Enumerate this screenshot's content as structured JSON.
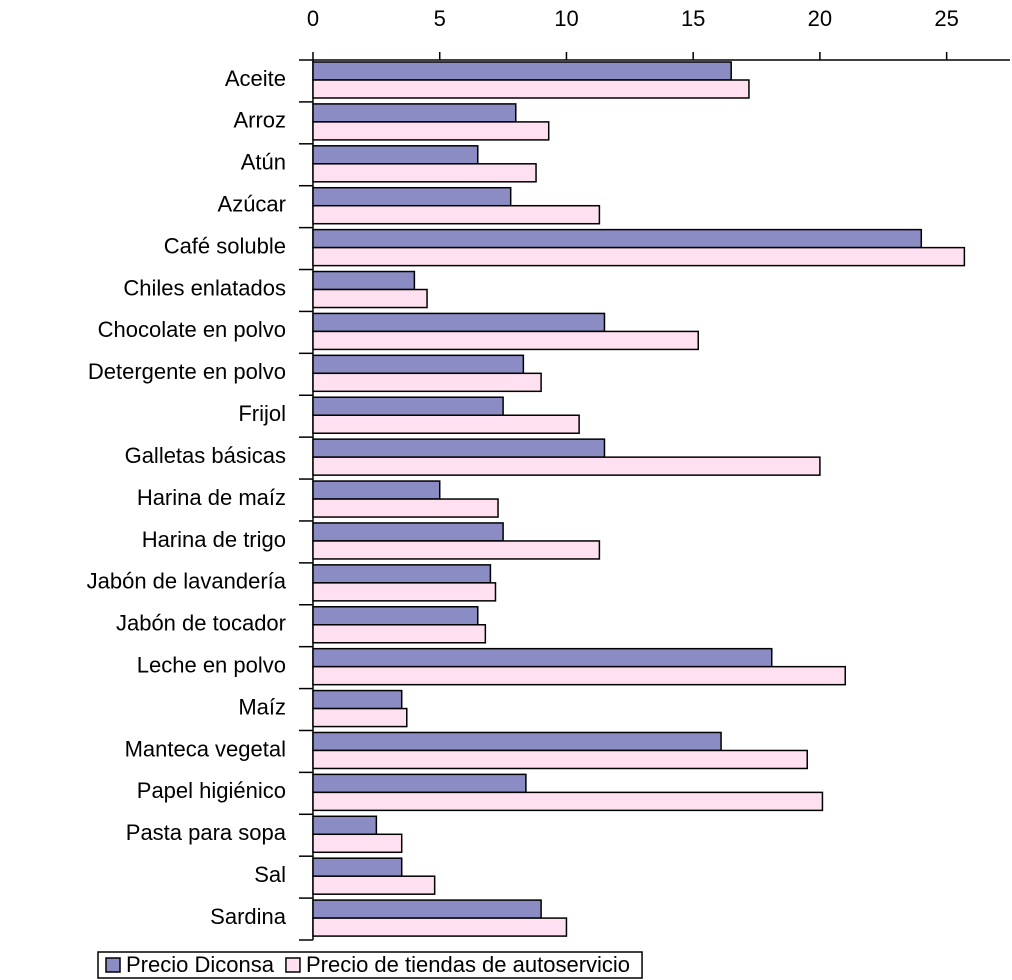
{
  "chart_data": {
    "type": "bar",
    "orientation": "horizontal",
    "categories": [
      "Aceite",
      "Arroz",
      "Atún",
      "Azúcar",
      "Café soluble",
      "Chiles enlatados",
      "Chocolate en polvo",
      "Detergente en polvo",
      "Frijol",
      "Galletas básicas",
      "Harina de maíz",
      "Harina de trigo",
      "Jabón de lavandería",
      "Jabón de tocador",
      "Leche en polvo",
      "Maíz",
      "Manteca vegetal",
      "Papel higiénico",
      "Pasta para sopa",
      "Sal",
      "Sardina"
    ],
    "series": [
      {
        "name": "Precio Diconsa",
        "color": "#8c8cc4",
        "values": [
          16.5,
          8.0,
          6.5,
          7.8,
          24.0,
          4.0,
          11.5,
          8.3,
          7.5,
          11.5,
          5.0,
          7.5,
          7.0,
          6.5,
          18.1,
          3.5,
          16.1,
          8.4,
          2.5,
          3.5,
          9.0
        ]
      },
      {
        "name": "Precio de tiendas de autoservicio",
        "color": "#ffe0f0",
        "values": [
          17.2,
          9.3,
          8.8,
          11.3,
          25.7,
          4.5,
          15.2,
          9.0,
          10.5,
          20.0,
          7.3,
          11.3,
          7.2,
          6.8,
          21.0,
          3.7,
          19.5,
          20.1,
          3.5,
          4.8,
          10.0
        ]
      }
    ],
    "xlim": [
      0,
      27.5
    ],
    "xticks": [
      0,
      5,
      10,
      15,
      20,
      25
    ],
    "legend": "bottom"
  }
}
